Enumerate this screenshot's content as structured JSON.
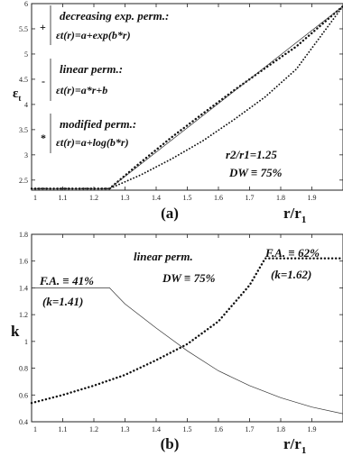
{
  "chart_data": [
    {
      "type": "line",
      "panel_label": "(a)",
      "ylabel_main": "ε",
      "ylabel_sub": "t",
      "xlabel_main": "r/r",
      "xlabel_sub": "1",
      "xlim": [
        1.0,
        2.0
      ],
      "ylim": [
        2.3,
        6.0
      ],
      "xticks": [
        "1",
        "1.1",
        "1.2",
        "1.3",
        "1.4",
        "1.5",
        "1.6",
        "1.7",
        "1.8",
        "1.9"
      ],
      "xtick_values": [
        1.0,
        1.1,
        1.2,
        1.3,
        1.4,
        1.5,
        1.6,
        1.7,
        1.8,
        1.9
      ],
      "yticks": [
        "2.5",
        "3",
        "3.5",
        "4",
        "4.5",
        "5",
        "5.5",
        "6"
      ],
      "ytick_values": [
        2.5,
        3.0,
        3.5,
        4.0,
        4.5,
        5.0,
        5.5,
        6.0
      ],
      "legend": [
        {
          "marker": "+",
          "name": "decreasing exp. perm.:",
          "formula": "εt(r)=a+exp(b*r)"
        },
        {
          "marker": "-",
          "name": "linear perm.:",
          "formula": "εt(r)=a*r+b"
        },
        {
          "marker": "*",
          "name": "modified perm.:",
          "formula": "εt(r)=a+log(b*r)"
        }
      ],
      "annotations": [
        "r2/r1=1.25",
        "DW ≡ 75%"
      ],
      "series": [
        {
          "name": "decreasing exp. perm.",
          "style": "dotted-heavy",
          "x": [
            1.0,
            1.25,
            1.35,
            1.45,
            1.55,
            1.65,
            1.75,
            1.85,
            2.0
          ],
          "y": [
            2.33,
            2.33,
            2.85,
            3.35,
            3.82,
            4.28,
            4.72,
            5.15,
            5.95
          ]
        },
        {
          "name": "linear perm.",
          "style": "solid-thin",
          "x": [
            1.0,
            1.25,
            2.0
          ],
          "y": [
            2.33,
            2.33,
            5.95
          ]
        },
        {
          "name": "modified perm.",
          "style": "dotted-light",
          "x": [
            1.0,
            1.25,
            1.35,
            1.45,
            1.55,
            1.65,
            1.75,
            1.85,
            2.0
          ],
          "y": [
            2.33,
            2.33,
            2.6,
            2.92,
            3.28,
            3.7,
            4.15,
            4.7,
            5.95
          ]
        }
      ]
    },
    {
      "type": "line",
      "panel_label": "(b)",
      "ylabel_main": "k",
      "xlabel_main": "r/r",
      "xlabel_sub": "1",
      "xlim": [
        1.0,
        2.0
      ],
      "ylim": [
        0.4,
        1.8
      ],
      "xticks": [
        "1",
        "1.1",
        "1.2",
        "1.3",
        "1.4",
        "1.5",
        "1.6",
        "1.7",
        "1.8",
        "1.9"
      ],
      "xtick_values": [
        1.0,
        1.1,
        1.2,
        1.3,
        1.4,
        1.5,
        1.6,
        1.7,
        1.8,
        1.9
      ],
      "yticks": [
        "0.4",
        "0.6",
        "0.8",
        "1",
        "1.2",
        "1.4",
        "1.6",
        "1.8"
      ],
      "ytick_values": [
        0.4,
        0.6,
        0.8,
        1.0,
        1.2,
        1.4,
        1.6,
        1.8
      ],
      "annotations": {
        "center_title": "linear perm.",
        "center_dw": "DW ≡ 75%",
        "left_fa": "F.A. ≡ 41%",
        "left_k": "(k=1.41)",
        "right_fa": "F.A. ≡ 62%",
        "right_k": "(k=1.62)"
      },
      "series": [
        {
          "name": "solid",
          "style": "solid-thin",
          "x": [
            1.0,
            1.25,
            1.3,
            1.4,
            1.5,
            1.6,
            1.7,
            1.8,
            1.9,
            2.0
          ],
          "y": [
            1.4,
            1.4,
            1.28,
            1.1,
            0.93,
            0.78,
            0.67,
            0.58,
            0.51,
            0.46
          ]
        },
        {
          "name": "dotted",
          "style": "dotted-heavy",
          "x": [
            1.0,
            1.1,
            1.2,
            1.3,
            1.4,
            1.5,
            1.6,
            1.7,
            1.75,
            2.0
          ],
          "y": [
            0.54,
            0.6,
            0.67,
            0.75,
            0.86,
            0.98,
            1.15,
            1.42,
            1.62,
            1.62
          ]
        }
      ]
    }
  ]
}
